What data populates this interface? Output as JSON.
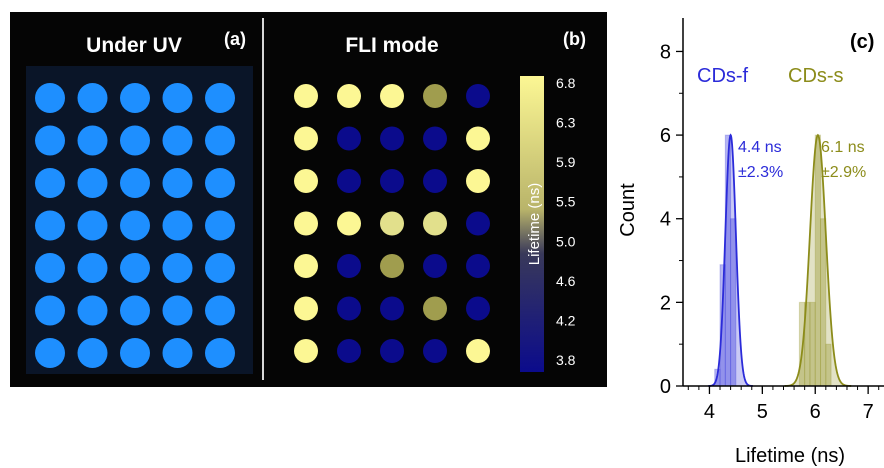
{
  "panels": {
    "a": {
      "tag": "(a)",
      "title": "Under UV",
      "well_color": "#1e8fff",
      "rows": 7,
      "cols": 5
    },
    "b": {
      "tag": "(b)",
      "title": "FLI mode",
      "colorbar_label": "Lifetime (ns)",
      "colorbar_ticks": [
        "6.8",
        "6.3",
        "5.9",
        "5.5",
        "5.0",
        "4.6",
        "4.2",
        "3.8"
      ],
      "colors": {
        "low": "#0b0b8c",
        "high": "#fcf794",
        "mid": "#a09d4e",
        "bright": "#e2e08c"
      },
      "grid": [
        [
          "high",
          "high",
          "high",
          "mid",
          "low"
        ],
        [
          "high",
          "low",
          "low",
          "low",
          "high"
        ],
        [
          "high",
          "low",
          "low",
          "low",
          "high"
        ],
        [
          "high",
          "high",
          "bright",
          "bright",
          "low"
        ],
        [
          "high",
          "low",
          "mid",
          "low",
          "low"
        ],
        [
          "high",
          "low",
          "low",
          "mid",
          "low"
        ],
        [
          "high",
          "low",
          "low",
          "low",
          "high"
        ]
      ]
    }
  },
  "chart_data": {
    "type": "area",
    "panel_tag": "(c)",
    "xlabel": "Lifetime (ns)",
    "ylabel": "Count",
    "xlim": [
      3.5,
      7.3
    ],
    "ylim": [
      0,
      8.8
    ],
    "xticks": [
      "4",
      "5",
      "6",
      "7"
    ],
    "yticks": [
      "0",
      "2",
      "4",
      "6",
      "8"
    ],
    "series": [
      {
        "name": "CDs-f",
        "color": "#2b2bd9",
        "fit_center": 4.4,
        "fit_sigma": 0.1,
        "fit_peak": 6,
        "bars": [
          {
            "x": 4.15,
            "y": 0.4
          },
          {
            "x": 4.25,
            "y": 2.9
          },
          {
            "x": 4.35,
            "y": 6.0
          },
          {
            "x": 4.45,
            "y": 4.0
          }
        ],
        "label_value": "4.4 ns",
        "label_spread": "±2.3%"
      },
      {
        "name": "CDs-s",
        "color": "#8c8c1a",
        "fit_center": 6.05,
        "fit_sigma": 0.15,
        "fit_peak": 6,
        "bars": [
          {
            "x": 5.75,
            "y": 2.0
          },
          {
            "x": 5.85,
            "y": 2.0
          },
          {
            "x": 5.95,
            "y": 2.0
          },
          {
            "x": 6.05,
            "y": 6.0
          },
          {
            "x": 6.15,
            "y": 4.0
          },
          {
            "x": 6.25,
            "y": 1.0
          }
        ],
        "label_value": "6.1 ns",
        "label_spread": "±2.9%"
      }
    ]
  }
}
